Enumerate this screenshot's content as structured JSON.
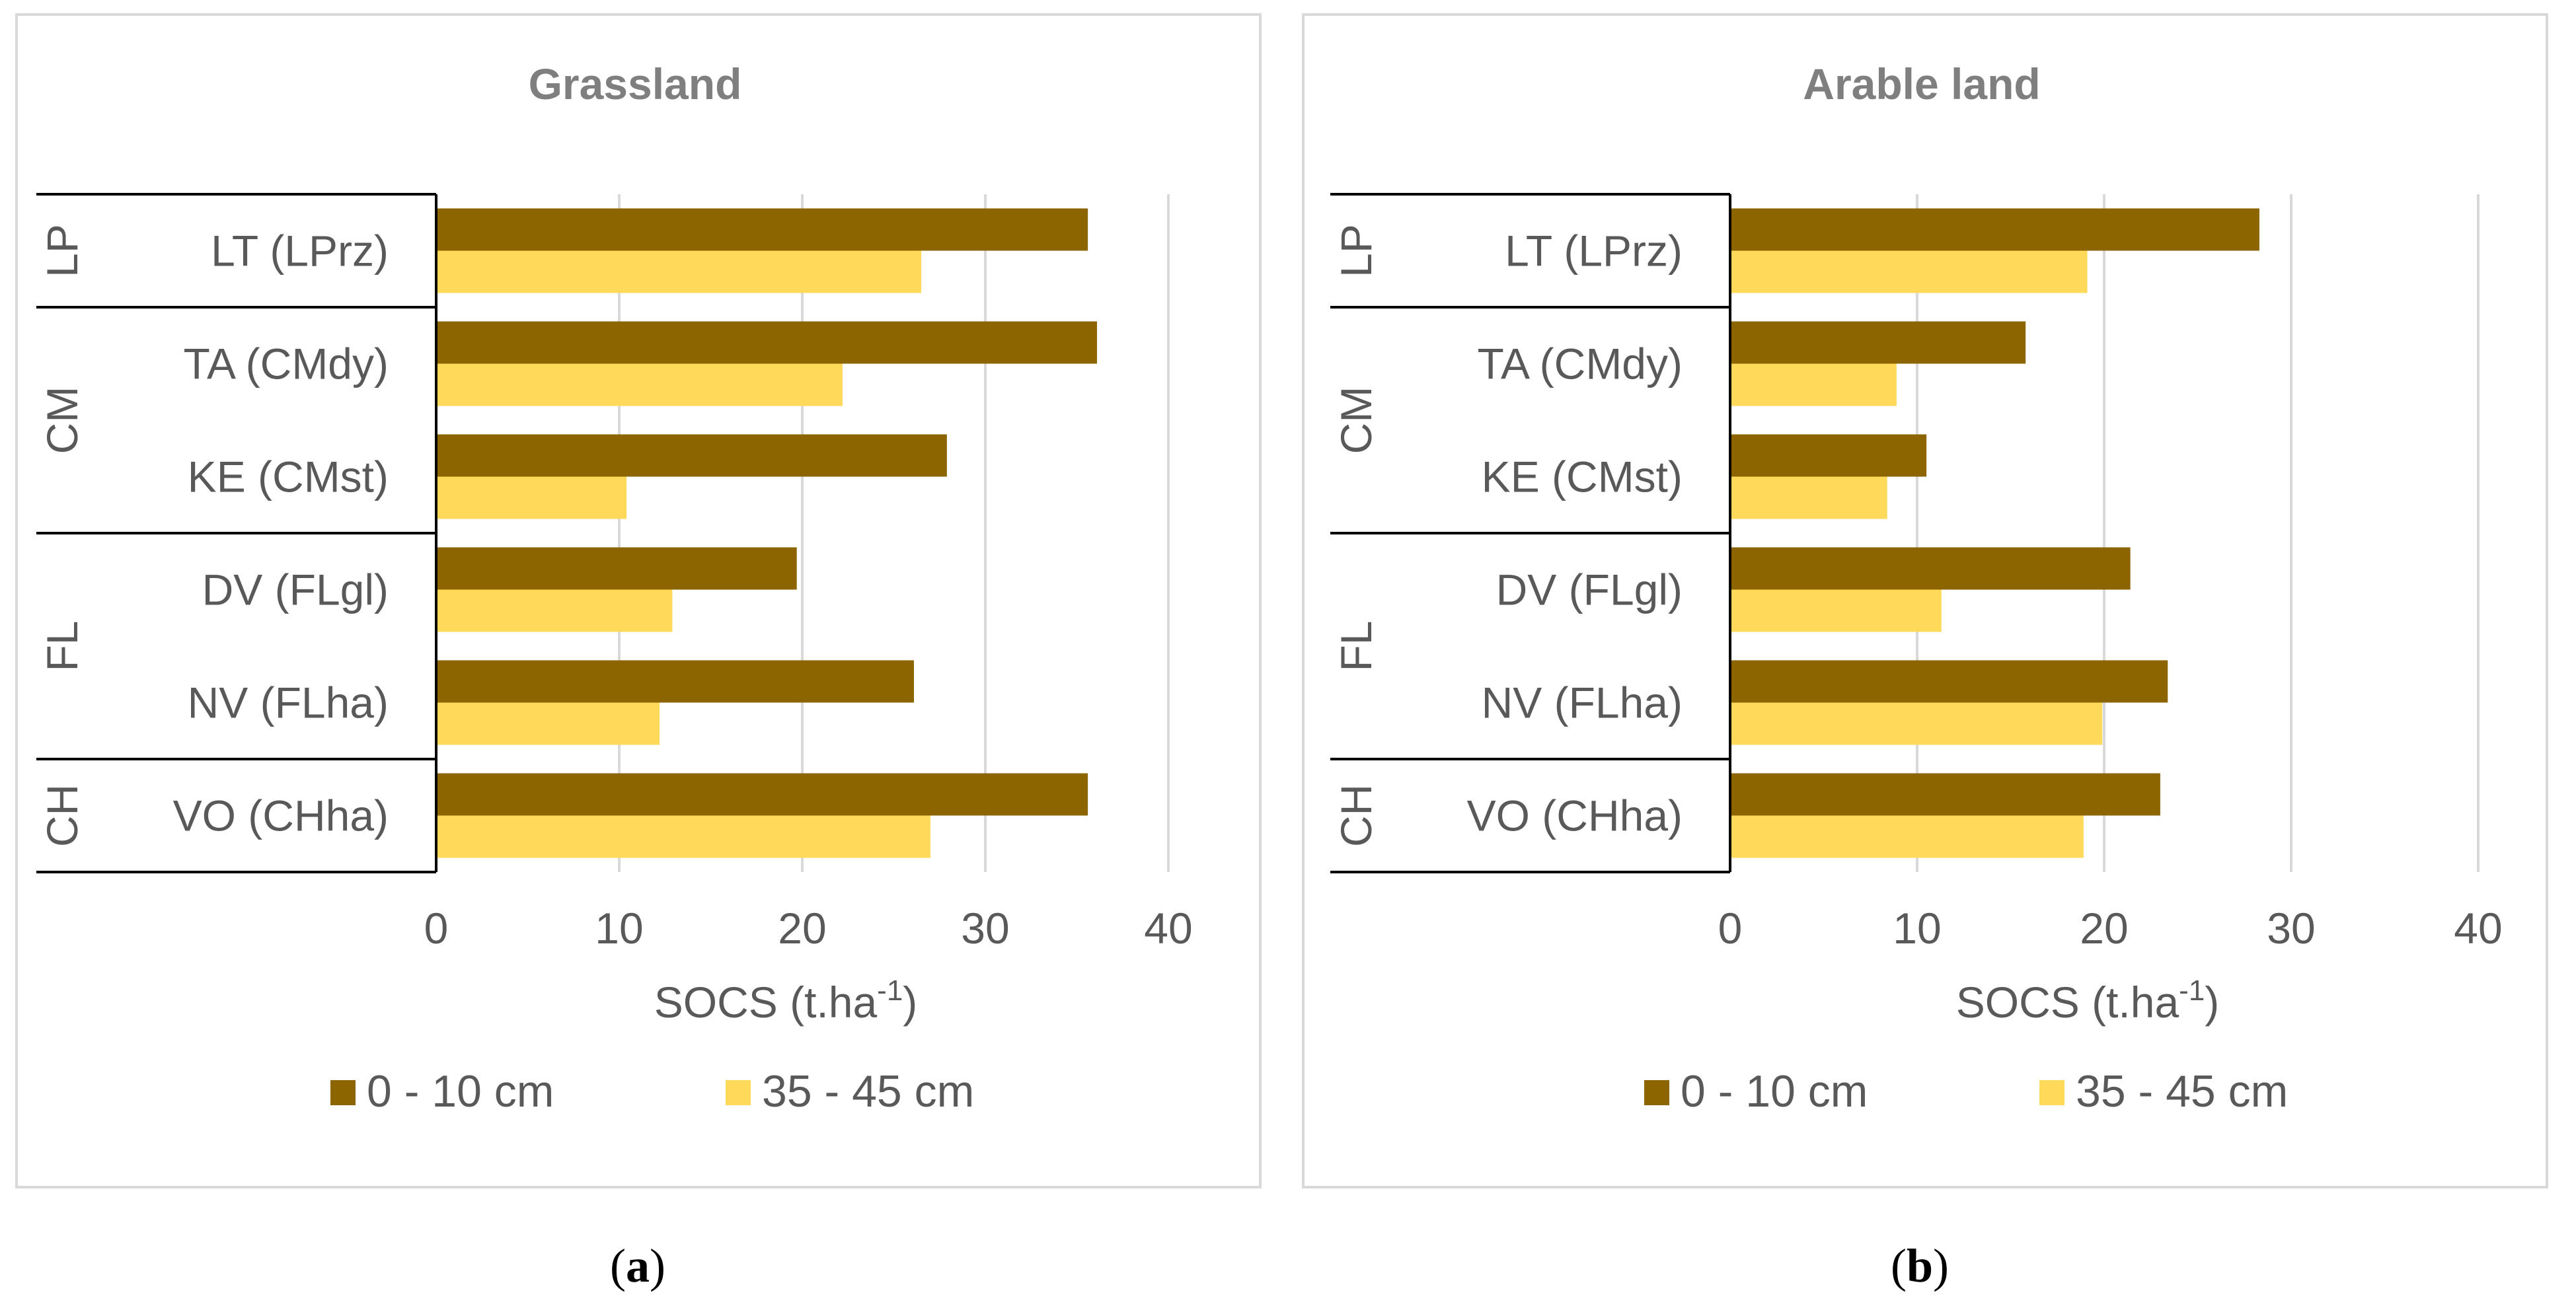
{
  "colors": {
    "dark": "#8c6400",
    "light": "#ffd95a",
    "grid": "#d9d9d9",
    "frame": "#d9d9d9",
    "line": "#000000"
  },
  "legend": {
    "series1": "0 - 10 cm",
    "series2": "35 - 45 cm"
  },
  "chart_data": [
    {
      "type": "bar",
      "orientation": "horizontal",
      "title": "Grassland",
      "xlabel_main": "SOCS (t.ha",
      "xlabel_sup": "-1",
      "xlabel_end": ")",
      "xlim": [
        0,
        40
      ],
      "ticks": [
        0,
        10,
        20,
        30,
        40
      ],
      "tick_labels": [
        "0",
        "10",
        "20",
        "30",
        "40"
      ],
      "caption": [
        "(",
        "a",
        ")"
      ],
      "categories": [
        "LT (LPrz)",
        "TA (CMdy)",
        "KE (CMst)",
        "DV (FLgl)",
        "NV (FLha)",
        "VO (CHha)"
      ],
      "groups": [
        {
          "label": "LP",
          "count": 1
        },
        {
          "label": "CM",
          "count": 2
        },
        {
          "label": "FL",
          "count": 2
        },
        {
          "label": "CH",
          "count": 1
        }
      ],
      "series": [
        {
          "name": "0 - 10 cm",
          "values": [
            35.6,
            36.1,
            27.9,
            19.7,
            26.1,
            35.6
          ]
        },
        {
          "name": "35 - 45 cm",
          "values": [
            26.5,
            22.2,
            10.4,
            12.9,
            12.2,
            27.0
          ]
        }
      ]
    },
    {
      "type": "bar",
      "orientation": "horizontal",
      "title": "Arable land",
      "xlabel_main": "SOCS (t.ha",
      "xlabel_sup": "-1",
      "xlabel_end": ")",
      "xlim": [
        0,
        40
      ],
      "ticks": [
        0,
        10,
        20,
        30,
        40
      ],
      "tick_labels": [
        "0",
        "10",
        "20",
        "30",
        "40"
      ],
      "caption": [
        "(",
        "b",
        ")"
      ],
      "categories": [
        "LT (LPrz)",
        "TA (CMdy)",
        "KE (CMst)",
        "DV (FLgl)",
        "NV (FLha)",
        "VO (CHha)"
      ],
      "groups": [
        {
          "label": "LP",
          "count": 1
        },
        {
          "label": "CM",
          "count": 2
        },
        {
          "label": "FL",
          "count": 2
        },
        {
          "label": "CH",
          "count": 1
        }
      ],
      "series": [
        {
          "name": "0 - 10 cm",
          "values": [
            28.3,
            15.8,
            10.5,
            21.4,
            23.4,
            23.0
          ]
        },
        {
          "name": "35 - 45 cm",
          "values": [
            19.1,
            8.9,
            8.4,
            11.3,
            19.9,
            18.9
          ]
        }
      ]
    }
  ]
}
